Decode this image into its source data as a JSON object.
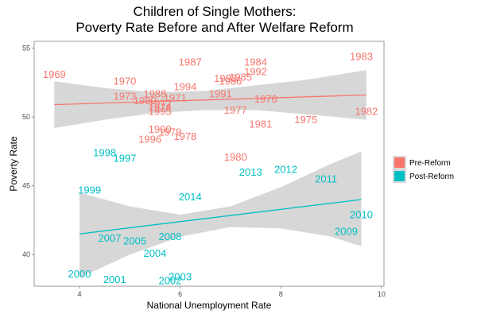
{
  "chart_data": {
    "type": "scatter",
    "title_lines": [
      "Children of Single Mothers:",
      "Poverty Rate Before and After Welfare Reform"
    ],
    "xlabel": "National Unemployment Rate",
    "ylabel": "Poverty Rate",
    "xlim": [
      3.1,
      10.05
    ],
    "ylim": [
      37.7,
      55.5
    ],
    "x_ticks": [
      4,
      6,
      8,
      10
    ],
    "y_ticks": [
      40,
      45,
      50,
      55
    ],
    "grid": false,
    "legend_position": "right",
    "series": [
      {
        "name": "Pre-Reform",
        "color": "#F8766D",
        "points": [
          {
            "label": "1969",
            "x": 3.5,
            "y": 53.1
          },
          {
            "label": "1970",
            "x": 4.9,
            "y": 52.6
          },
          {
            "label": "1973",
            "x": 4.9,
            "y": 51.5
          },
          {
            "label": "1988",
            "x": 5.5,
            "y": 51.7
          },
          {
            "label": "1994",
            "x": 6.1,
            "y": 52.2
          },
          {
            "label": "1971",
            "x": 5.9,
            "y": 51.4
          },
          {
            "label": "1989",
            "x": 5.3,
            "y": 51.2
          },
          {
            "label": "1972",
            "x": 5.6,
            "y": 51.0
          },
          {
            "label": "1974",
            "x": 5.6,
            "y": 50.7
          },
          {
            "label": "1995",
            "x": 5.6,
            "y": 50.4
          },
          {
            "label": "1987",
            "x": 6.2,
            "y": 54.0
          },
          {
            "label": "1984",
            "x": 7.5,
            "y": 54.0
          },
          {
            "label": "1993",
            "x": 6.9,
            "y": 52.8
          },
          {
            "label": "1986",
            "x": 7.0,
            "y": 52.6
          },
          {
            "label": "1985",
            "x": 7.2,
            "y": 52.9
          },
          {
            "label": "1992",
            "x": 7.5,
            "y": 53.3
          },
          {
            "label": "1991",
            "x": 6.8,
            "y": 51.7
          },
          {
            "label": "1976",
            "x": 7.7,
            "y": 51.3
          },
          {
            "label": "1977",
            "x": 7.1,
            "y": 50.5
          },
          {
            "label": "1983",
            "x": 9.6,
            "y": 54.4
          },
          {
            "label": "1982",
            "x": 9.7,
            "y": 50.4
          },
          {
            "label": "1975",
            "x": 8.5,
            "y": 49.8
          },
          {
            "label": "1981",
            "x": 7.6,
            "y": 49.5
          },
          {
            "label": "1990",
            "x": 5.6,
            "y": 49.1
          },
          {
            "label": "1979",
            "x": 5.8,
            "y": 48.9
          },
          {
            "label": "1996",
            "x": 5.4,
            "y": 48.4
          },
          {
            "label": "1978",
            "x": 6.1,
            "y": 48.6
          },
          {
            "label": "1980",
            "x": 7.1,
            "y": 47.1
          }
        ],
        "trend": {
          "x0": 3.5,
          "y0": 50.9,
          "x1": 9.7,
          "y1": 51.6
        },
        "band": {
          "x": [
            3.5,
            4.5,
            5.5,
            6.5,
            7.5,
            8.5,
            9.7
          ],
          "lower": [
            49.2,
            49.8,
            50.3,
            50.5,
            50.5,
            50.2,
            49.8
          ],
          "upper": [
            52.6,
            52.1,
            51.8,
            51.9,
            52.3,
            52.7,
            53.4
          ]
        }
      },
      {
        "name": "Post-Reform",
        "color": "#00BFC4",
        "points": [
          {
            "label": "1998",
            "x": 4.5,
            "y": 47.4
          },
          {
            "label": "1997",
            "x": 4.9,
            "y": 47.0
          },
          {
            "label": "1999",
            "x": 4.2,
            "y": 44.7
          },
          {
            "label": "2000",
            "x": 4.0,
            "y": 38.6
          },
          {
            "label": "2001",
            "x": 4.7,
            "y": 38.2
          },
          {
            "label": "2007",
            "x": 4.6,
            "y": 41.2
          },
          {
            "label": "2005",
            "x": 5.1,
            "y": 41.0
          },
          {
            "label": "2008",
            "x": 5.8,
            "y": 41.3
          },
          {
            "label": "2004",
            "x": 5.5,
            "y": 40.1
          },
          {
            "label": "2002",
            "x": 5.8,
            "y": 38.1
          },
          {
            "label": "2003",
            "x": 6.0,
            "y": 38.4
          },
          {
            "label": "2014",
            "x": 6.2,
            "y": 44.2
          },
          {
            "label": "2013",
            "x": 7.4,
            "y": 46.0
          },
          {
            "label": "2012",
            "x": 8.1,
            "y": 46.2
          },
          {
            "label": "2011",
            "x": 8.9,
            "y": 45.5
          },
          {
            "label": "2010",
            "x": 9.6,
            "y": 42.9
          },
          {
            "label": "2009",
            "x": 9.3,
            "y": 41.7
          }
        ],
        "trend": {
          "x0": 4.0,
          "y0": 41.5,
          "x1": 9.6,
          "y1": 44.0
        },
        "band": {
          "x": [
            4.0,
            5.0,
            6.0,
            7.0,
            8.0,
            9.0,
            9.6
          ],
          "lower": [
            38.3,
            40.0,
            41.3,
            42.0,
            41.9,
            41.3,
            40.6
          ],
          "upper": [
            44.5,
            43.5,
            42.9,
            43.5,
            44.9,
            46.6,
            47.5
          ]
        }
      }
    ]
  }
}
